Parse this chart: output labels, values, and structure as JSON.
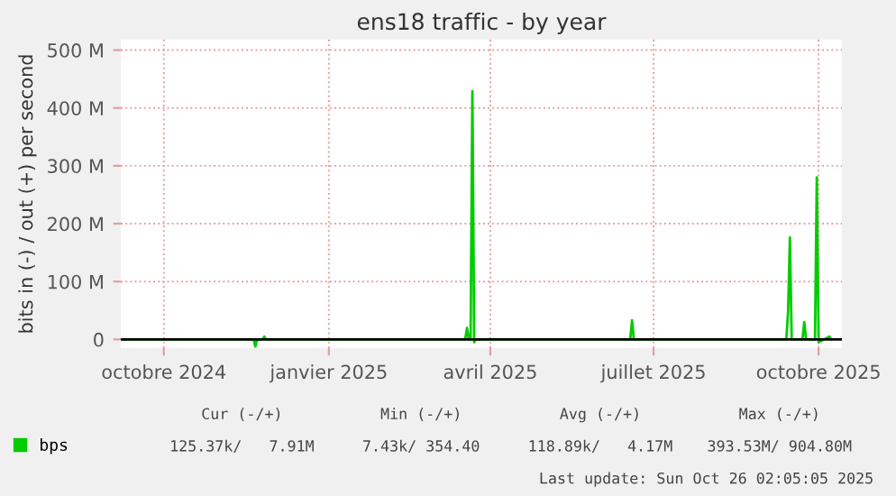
{
  "chart_data": {
    "type": "line",
    "title": "ens18 traffic - by year",
    "ylabel": "bits in (-) / out (+) per second",
    "x": [
      "2024-09-08",
      "2024-11-20",
      "2024-11-21",
      "2024-11-22",
      "2024-11-25",
      "2024-11-26",
      "2024-11-27",
      "2025-03-18",
      "2025-03-19",
      "2025-03-20",
      "2025-03-21",
      "2025-03-22",
      "2025-03-23",
      "2025-03-24",
      "2025-06-18",
      "2025-06-19",
      "2025-06-20",
      "2025-09-13",
      "2025-09-14",
      "2025-09-15",
      "2025-09-16",
      "2025-09-22",
      "2025-09-23",
      "2025-09-24",
      "2025-09-29",
      "2025-09-30",
      "2025-10-01",
      "2025-10-04",
      "2025-10-07",
      "2025-10-08"
    ],
    "series": [
      {
        "name": "bps",
        "color": "#00cc00",
        "values": [
          0,
          0,
          -12000000,
          0,
          0,
          5000000,
          0,
          0,
          20000000,
          0,
          0,
          429000000,
          -5000000,
          0,
          0,
          33000000,
          0,
          0,
          48000000,
          176000000,
          0,
          0,
          30000000,
          0,
          0,
          280000000,
          -5000000,
          0,
          5000000,
          0
        ]
      }
    ],
    "xlim": [
      "2024-09-07",
      "2025-10-14"
    ],
    "xticks": [
      {
        "value": "2024-10-01",
        "label": "octobre 2024"
      },
      {
        "value": "2025-01-01",
        "label": "janvier 2025"
      },
      {
        "value": "2025-04-01",
        "label": "avril 2025"
      },
      {
        "value": "2025-07-01",
        "label": "juillet 2025"
      },
      {
        "value": "2025-10-01",
        "label": "octobre 2025"
      }
    ],
    "ylim": [
      -15000000,
      518000000
    ],
    "yticks": [
      0,
      {
        "value": 100000000,
        "label": "100 M"
      },
      {
        "value": 200000000,
        "label": "200 M"
      },
      {
        "value": 300000000,
        "label": "300 M"
      },
      {
        "value": 400000000,
        "label": "400 M"
      },
      {
        "value": 500000000,
        "label": "500 M"
      }
    ],
    "ref_lines": [
      {
        "axis": "y",
        "value": 0,
        "color": "#000000"
      }
    ],
    "grid": true,
    "legend": "bottom left",
    "annotations": [
      "Cur (-/+)",
      "Min (-/+)",
      "Avg (-/+)",
      "Max (-/+)",
      "125.37k/   7.91M",
      "7.43k/ 354.40",
      "118.89k/   4.17M",
      "393.53M/ 904.80M",
      "Last update: Sun Oct 26 02:05:05 2025"
    ]
  }
}
